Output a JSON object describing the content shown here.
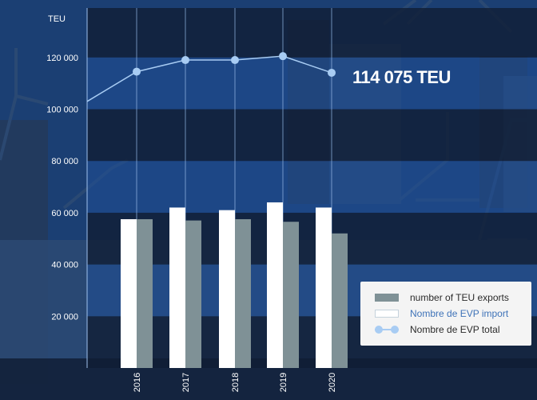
{
  "chart_data": {
    "type": "bar",
    "ylabel": "TEU",
    "ylim": [
      0,
      140000
    ],
    "yticks": [
      20000,
      40000,
      60000,
      80000,
      100000,
      120000
    ],
    "ytick_labels": [
      "20 000",
      "40 000",
      "60 000",
      "80 000",
      "100 000",
      "120 000"
    ],
    "categories": [
      "2016",
      "2017",
      "2018",
      "2019",
      "2020"
    ],
    "series": [
      {
        "name": "Nombre de EVP import",
        "kind": "bar",
        "values": [
          57500,
          62000,
          61000,
          64000,
          62000
        ]
      },
      {
        "name": "number of TEU exports",
        "kind": "bar",
        "values": [
          57500,
          57000,
          57500,
          56500,
          52000
        ]
      },
      {
        "name": "Nombre de EVP total",
        "kind": "line",
        "values": [
          114500,
          119000,
          119000,
          120500,
          114075
        ]
      }
    ],
    "line_start_value": 103000,
    "annotation": "114 075 TEU",
    "grid": true,
    "legend_position": "bottom-right",
    "colors": {
      "import": "#ffffff",
      "export": "#7f9196",
      "total": "#a8ccf3"
    }
  },
  "legend": {
    "items": [
      {
        "label": "number of TEU exports",
        "swatch": "export"
      },
      {
        "label": "Nombre de EVP import",
        "swatch": "import"
      },
      {
        "label": "Nombre de EVP total",
        "swatch": "total"
      }
    ]
  }
}
